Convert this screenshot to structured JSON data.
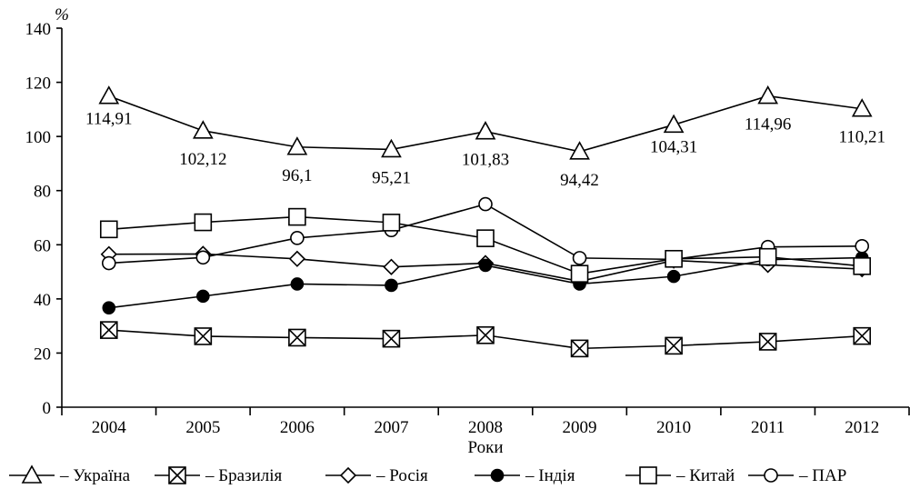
{
  "chart_data": {
    "type": "line",
    "xlabel": "Роки",
    "ylabel": "%",
    "ylim": [
      0,
      140
    ],
    "yticks": [
      0,
      20,
      40,
      60,
      80,
      100,
      120,
      140
    ],
    "categories": [
      "2004",
      "2005",
      "2006",
      "2007",
      "2008",
      "2009",
      "2010",
      "2011",
      "2012"
    ],
    "grid": false,
    "legend_position": "bottom",
    "series": [
      {
        "name": "– Україна",
        "marker": "triangle-open",
        "values": [
          114.91,
          102.12,
          96.1,
          95.21,
          101.83,
          94.42,
          104.31,
          114.96,
          110.21
        ],
        "labels": [
          "114,91",
          "102,12",
          "96,1",
          "95,21",
          "101,83",
          "94,42",
          "104,31",
          "114,96",
          "110,21"
        ]
      },
      {
        "name": "– Бразилія",
        "marker": "square-x",
        "values": [
          28.5,
          26.2,
          25.7,
          25.3,
          26.6,
          21.7,
          22.7,
          24.2,
          26.3
        ]
      },
      {
        "name": "– Росія",
        "marker": "diamond-open",
        "values": [
          56.5,
          56.6,
          54.8,
          51.8,
          53.2,
          46.5,
          54.2,
          52.6,
          51.0
        ]
      },
      {
        "name": "– Індія",
        "marker": "circle-filled",
        "values": [
          36.7,
          41.0,
          45.5,
          45.0,
          52.4,
          45.5,
          48.3,
          54.5,
          55.2
        ]
      },
      {
        "name": "– Китай",
        "marker": "square-open",
        "values": [
          65.7,
          68.3,
          70.3,
          68.2,
          62.4,
          49.3,
          54.8,
          55.5,
          52.1
        ]
      },
      {
        "name": "– ПАР",
        "marker": "circle-open",
        "values": [
          53.2,
          55.3,
          62.5,
          65.4,
          75.0,
          55.1,
          54.6,
          59.2,
          59.5
        ]
      }
    ]
  }
}
